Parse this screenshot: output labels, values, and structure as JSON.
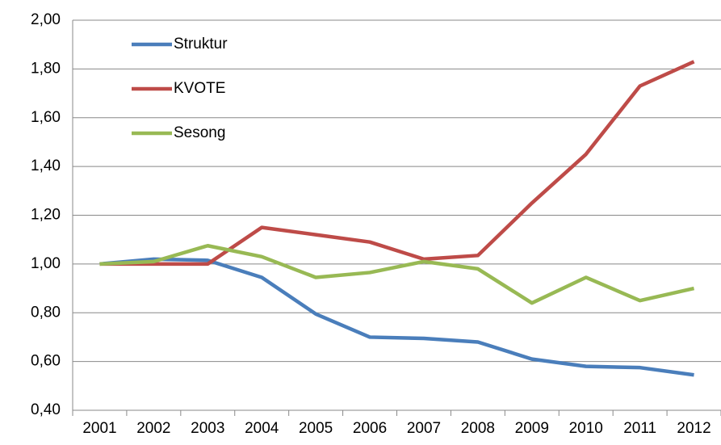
{
  "chart_data": {
    "type": "line",
    "categories": [
      "2001",
      "2002",
      "2003",
      "2004",
      "2005",
      "2006",
      "2007",
      "2008",
      "2009",
      "2010",
      "2011",
      "2012"
    ],
    "series": [
      {
        "name": "Struktur",
        "color": "#4a7ebb",
        "values": [
          1.0,
          1.02,
          1.015,
          0.945,
          0.795,
          0.7,
          0.695,
          0.68,
          0.61,
          0.58,
          0.575,
          0.545
        ]
      },
      {
        "name": "KVOTE",
        "color": "#be4b48",
        "values": [
          1.0,
          1.0,
          1.0,
          1.15,
          1.12,
          1.09,
          1.02,
          1.035,
          1.25,
          1.45,
          1.73,
          1.83
        ]
      },
      {
        "name": "Sesong",
        "color": "#98b954",
        "values": [
          1.0,
          1.01,
          1.075,
          1.03,
          0.945,
          0.965,
          1.01,
          0.98,
          0.84,
          0.945,
          0.85,
          0.9
        ]
      }
    ],
    "ylim": [
      0.4,
      2.0
    ],
    "yticks": [
      {
        "value": 0.4,
        "label": "0,40"
      },
      {
        "value": 0.6,
        "label": "0,60"
      },
      {
        "value": 0.8,
        "label": "0,80"
      },
      {
        "value": 1.0,
        "label": "1,00"
      },
      {
        "value": 1.2,
        "label": "1,20"
      },
      {
        "value": 1.4,
        "label": "1,40"
      },
      {
        "value": 1.6,
        "label": "1,60"
      },
      {
        "value": 1.8,
        "label": "1,80"
      },
      {
        "value": 2.0,
        "label": "2,00"
      }
    ],
    "grid": true
  }
}
